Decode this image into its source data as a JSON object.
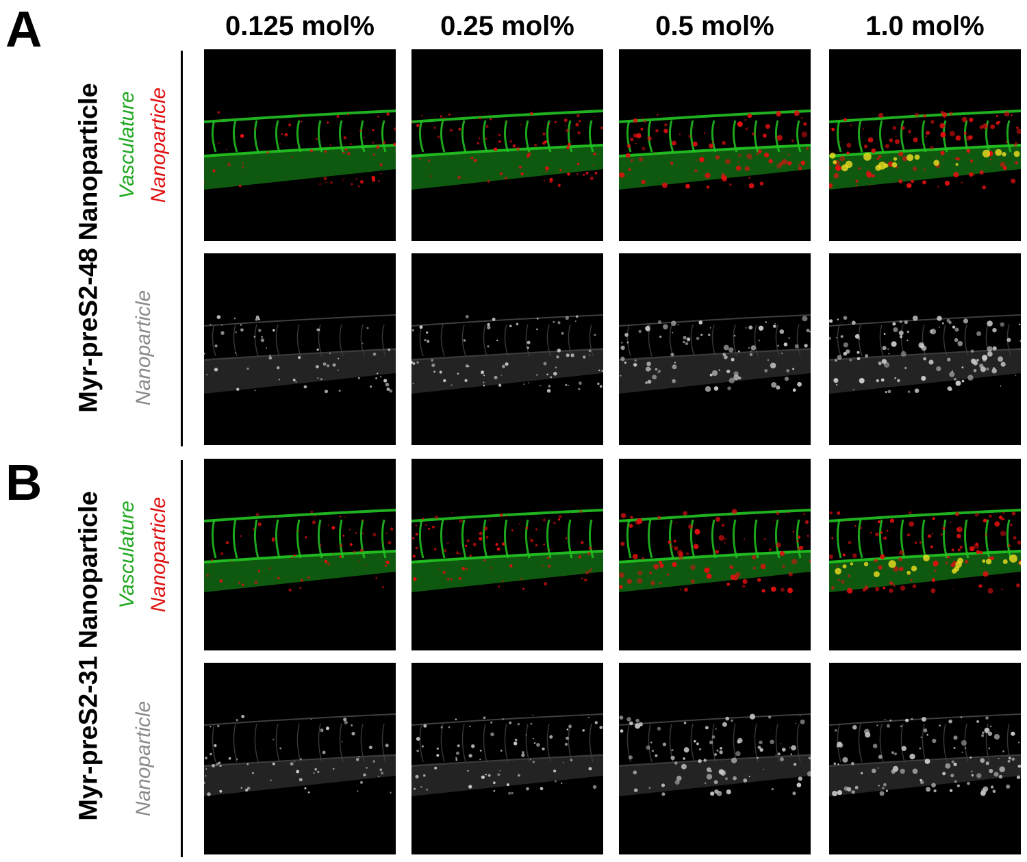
{
  "concentrations": [
    "0.125 mol%",
    "0.25 mol%",
    "0.5 mol%",
    "1.0 mol%"
  ],
  "panels": [
    {
      "letter": "A",
      "construct": "Myr-preS2-48 Nanoparticle",
      "merge_labels": {
        "vasculature": "Vasculature",
        "nanoparticle": "Nanoparticle"
      },
      "gray_label": "Nanoparticle"
    },
    {
      "letter": "B",
      "construct": "Myr-preS2-31 Nanoparticle",
      "merge_labels": {
        "vasculature": "Vasculature",
        "nanoparticle": "Nanoparticle"
      },
      "gray_label": "Nanoparticle"
    }
  ],
  "colors": {
    "vasculature": "#22c422",
    "nanoparticle": "#e01010",
    "gray_channel": "#9a9a9a",
    "background": "#000000"
  }
}
